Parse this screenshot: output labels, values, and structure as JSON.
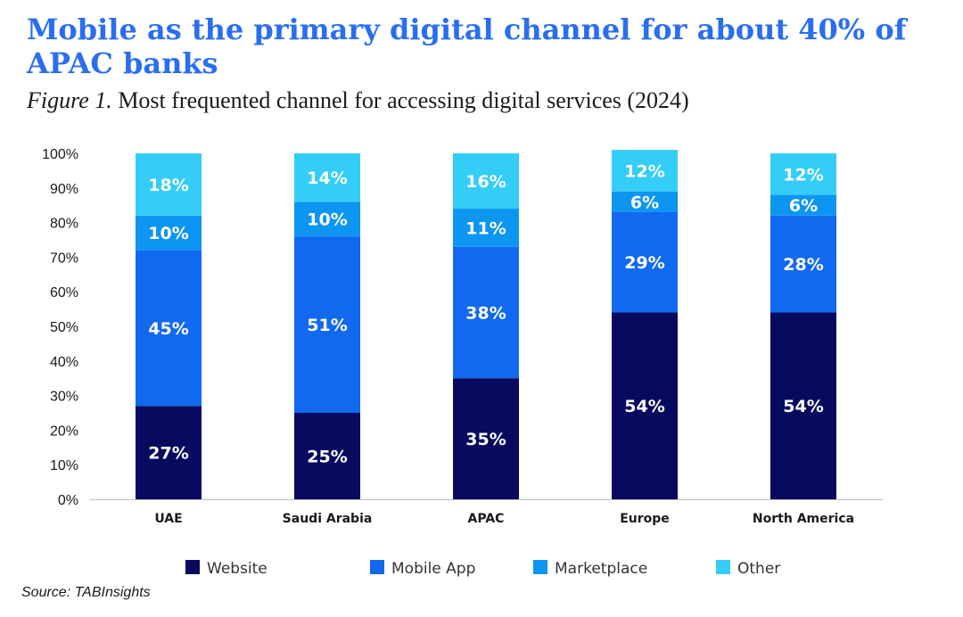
{
  "title": "Mobile as the primary digital channel for about 40% of APAC banks",
  "subtitle_prefix": "Figure 1.",
  "subtitle": "Most frequented channel for accessing digital services (2024)",
  "source": "Source: TABInsights",
  "chart_data": {
    "type": "bar",
    "stacked": true,
    "categories": [
      "UAE",
      "Saudi Arabia",
      "APAC",
      "Europe",
      "North America"
    ],
    "series": [
      {
        "name": "Website",
        "color": "#070a5e",
        "values": [
          27,
          25,
          35,
          54,
          54
        ]
      },
      {
        "name": "Mobile App",
        "color": "#1169f0",
        "values": [
          45,
          51,
          38,
          29,
          28
        ]
      },
      {
        "name": "Marketplace",
        "color": "#0d95f2",
        "values": [
          10,
          10,
          11,
          6,
          6
        ]
      },
      {
        "name": "Other",
        "color": "#34cdf8",
        "values": [
          18,
          14,
          16,
          12,
          12
        ]
      }
    ],
    "data_label_format": "{v}%",
    "ylim": [
      0,
      100
    ],
    "yticks": [
      "0%",
      "10%",
      "20%",
      "30%",
      "40%",
      "50%",
      "60%",
      "70%",
      "80%",
      "90%",
      "100%"
    ],
    "legend_position": "bottom",
    "grid": false
  }
}
